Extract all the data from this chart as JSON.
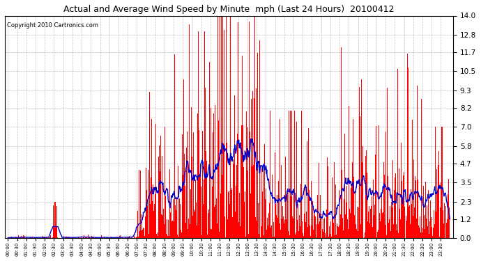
{
  "title": "Actual and Average Wind Speed by Minute  mph (Last 24 Hours)  20100412",
  "copyright": "Copyright 2010 Cartronics.com",
  "yticks": [
    0.0,
    1.2,
    2.3,
    3.5,
    4.7,
    5.8,
    7.0,
    8.2,
    9.3,
    10.5,
    11.7,
    12.8,
    14.0
  ],
  "ylim": [
    0.0,
    14.0
  ],
  "bar_color": "#ff0000",
  "line_color": "#0000cc",
  "bg_color": "#ffffff",
  "grid_color": "#999999",
  "title_fontsize": 9,
  "copyright_fontsize": 6,
  "xtick_fontsize": 5,
  "ytick_fontsize": 7.5,
  "n_minutes": 1440,
  "seed": 42
}
